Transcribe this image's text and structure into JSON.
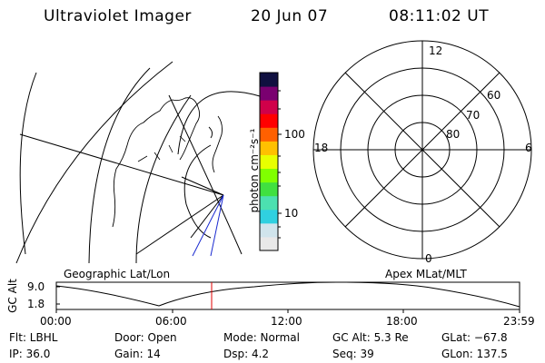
{
  "header": {
    "instrument": "Ultraviolet Imager",
    "date": "20 Jun 07",
    "time": "08:11:02 UT"
  },
  "colorbar": {
    "unit_label": "photon cm⁻²s⁻¹",
    "tick_labels": [
      "100",
      "10"
    ],
    "colors": [
      "#e8e8e8",
      "#d0e4ec",
      "#30d0e0",
      "#4ce0b0",
      "#40e040",
      "#80ff00",
      "#e8ff00",
      "#ffc000",
      "#ff6000",
      "#ff0000",
      "#d0004a",
      "#7a0070",
      "#101040"
    ]
  },
  "polar": {
    "mlt_labels": {
      "top": "12",
      "left": "18",
      "right": "6",
      "bottom": "0"
    },
    "lat_labels": [
      "60",
      "70",
      "80"
    ]
  },
  "geo_label": "Geographic Lat/Lon",
  "apex_label": "Apex MLat/MLT",
  "alt_plot": {
    "ylabel": "GC Alt",
    "yticks": [
      "9.0",
      "1.8"
    ],
    "xticks": [
      "00:00",
      "06:00",
      "12:00",
      "18:00",
      "23:59"
    ],
    "marker_color": "#e00000"
  },
  "info": {
    "flt": "Flt: LBHL",
    "door": "Door: Open",
    "mode": "Mode: Normal",
    "gc_alt": "GC Alt: 5.3 Re",
    "glat": "GLat: −67.8",
    "ip": "IP: 36.0",
    "gain": "Gain: 14",
    "dsp": "Dsp:     4.2",
    "seq": "Seq: 39",
    "glon": "GLon: 137.5"
  }
}
